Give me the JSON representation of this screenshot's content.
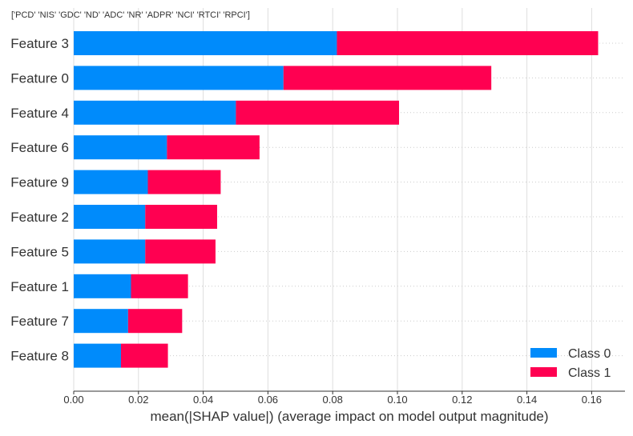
{
  "chart_data": {
    "type": "bar",
    "stacked": true,
    "orientation": "horizontal",
    "title": "['PCD' 'NIS' 'GDC' 'ND' 'ADC' 'NR' 'ADPR' 'NCI' 'RTCI' 'RPCI']",
    "xlabel": "mean(|SHAP value|) (average impact on model output magnitude)",
    "ylabel": "",
    "xlim": [
      0.0,
      0.17
    ],
    "xticks": [
      "0.00",
      "0.02",
      "0.04",
      "0.06",
      "0.08",
      "0.10",
      "0.12",
      "0.14",
      "0.16"
    ],
    "grid": true,
    "legend_position": "bottom-right",
    "categories": [
      "Feature 3",
      "Feature 0",
      "Feature 4",
      "Feature 6",
      "Feature 9",
      "Feature 2",
      "Feature 5",
      "Feature 1",
      "Feature 7",
      "Feature 8"
    ],
    "series": [
      {
        "name": "Class 0",
        "color": "#008bfb",
        "values": [
          0.0813,
          0.0648,
          0.0501,
          0.0288,
          0.0229,
          0.0221,
          0.0221,
          0.0177,
          0.0168,
          0.0146
        ]
      },
      {
        "name": "Class 1",
        "color": "#ff0051",
        "values": [
          0.0807,
          0.0642,
          0.0504,
          0.0286,
          0.0225,
          0.0222,
          0.0217,
          0.0176,
          0.0167,
          0.0145
        ]
      }
    ]
  }
}
